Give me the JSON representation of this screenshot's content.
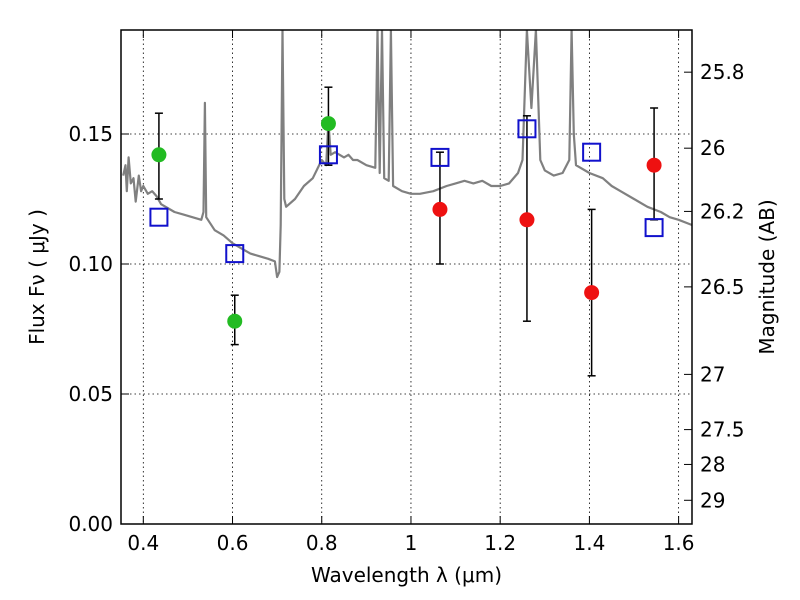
{
  "chart_data": {
    "type": "scatter",
    "xlabel": "Wavelength  λ (μm)",
    "ylabel": "Flux  Fν  ( μJy )",
    "ylabel_right": "Magnitude (AB)",
    "xlim": [
      0.35,
      1.63
    ],
    "ylim": [
      0.0,
      0.19
    ],
    "grid": true,
    "x_ticks": [
      {
        "value": 0.4,
        "label": "0.4"
      },
      {
        "value": 0.6,
        "label": "0.6"
      },
      {
        "value": 0.8,
        "label": "0.8"
      },
      {
        "value": 1.0,
        "label": "1"
      },
      {
        "value": 1.2,
        "label": "1.2"
      },
      {
        "value": 1.4,
        "label": "1.4"
      },
      {
        "value": 1.6,
        "label": "1.6"
      }
    ],
    "y_ticks": [
      {
        "value": 0.0,
        "label": "0.00"
      },
      {
        "value": 0.05,
        "label": "0.05"
      },
      {
        "value": 0.1,
        "label": "0.10"
      },
      {
        "value": 0.15,
        "label": "0.15"
      }
    ],
    "magnitude_ticks": [
      {
        "value": 25.8,
        "label": "25.8"
      },
      {
        "value": 26.0,
        "label": "26"
      },
      {
        "value": 26.2,
        "label": "26.2"
      },
      {
        "value": 26.5,
        "label": "26.5"
      },
      {
        "value": 27.0,
        "label": "27"
      },
      {
        "value": 27.5,
        "label": "27.5"
      },
      {
        "value": 28.0,
        "label": "28"
      },
      {
        "value": 29.0,
        "label": "29"
      }
    ],
    "series": [
      {
        "kind": "model-spectrum",
        "color": "#808080",
        "points": [
          [
            0.355,
            0.134
          ],
          [
            0.36,
            0.138
          ],
          [
            0.363,
            0.128
          ],
          [
            0.367,
            0.141
          ],
          [
            0.372,
            0.131
          ],
          [
            0.378,
            0.133
          ],
          [
            0.383,
            0.124
          ],
          [
            0.39,
            0.134
          ],
          [
            0.395,
            0.128
          ],
          [
            0.4,
            0.13
          ],
          [
            0.41,
            0.127
          ],
          [
            0.42,
            0.128
          ],
          [
            0.43,
            0.126
          ],
          [
            0.44,
            0.123
          ],
          [
            0.45,
            0.122
          ],
          [
            0.47,
            0.12
          ],
          [
            0.49,
            0.119
          ],
          [
            0.51,
            0.118
          ],
          [
            0.53,
            0.117
          ],
          [
            0.535,
            0.12
          ],
          [
            0.538,
            0.162
          ],
          [
            0.541,
            0.118
          ],
          [
            0.56,
            0.113
          ],
          [
            0.58,
            0.111
          ],
          [
            0.6,
            0.108
          ],
          [
            0.62,
            0.106
          ],
          [
            0.64,
            0.104
          ],
          [
            0.66,
            0.103
          ],
          [
            0.68,
            0.102
          ],
          [
            0.695,
            0.101
          ],
          [
            0.7,
            0.095
          ],
          [
            0.705,
            0.097
          ],
          [
            0.708,
            0.115
          ],
          [
            0.712,
            0.19
          ],
          [
            0.716,
            0.125
          ],
          [
            0.72,
            0.122
          ],
          [
            0.74,
            0.125
          ],
          [
            0.76,
            0.13
          ],
          [
            0.78,
            0.133
          ],
          [
            0.8,
            0.14
          ],
          [
            0.81,
            0.138
          ],
          [
            0.815,
            0.155
          ],
          [
            0.82,
            0.142
          ],
          [
            0.83,
            0.143
          ],
          [
            0.84,
            0.142
          ],
          [
            0.85,
            0.141
          ],
          [
            0.86,
            0.142
          ],
          [
            0.87,
            0.14
          ],
          [
            0.88,
            0.14
          ],
          [
            0.9,
            0.138
          ],
          [
            0.92,
            0.137
          ],
          [
            0.925,
            0.19
          ],
          [
            0.93,
            0.135
          ],
          [
            0.935,
            0.19
          ],
          [
            0.94,
            0.133
          ],
          [
            0.95,
            0.132
          ],
          [
            0.955,
            0.19
          ],
          [
            0.96,
            0.13
          ],
          [
            0.98,
            0.128
          ],
          [
            1.0,
            0.127
          ],
          [
            1.02,
            0.127
          ],
          [
            1.05,
            0.128
          ],
          [
            1.08,
            0.13
          ],
          [
            1.1,
            0.131
          ],
          [
            1.12,
            0.132
          ],
          [
            1.14,
            0.131
          ],
          [
            1.16,
            0.132
          ],
          [
            1.18,
            0.13
          ],
          [
            1.2,
            0.13
          ],
          [
            1.22,
            0.131
          ],
          [
            1.24,
            0.135
          ],
          [
            1.25,
            0.14
          ],
          [
            1.26,
            0.19
          ],
          [
            1.27,
            0.16
          ],
          [
            1.28,
            0.19
          ],
          [
            1.29,
            0.14
          ],
          [
            1.3,
            0.136
          ],
          [
            1.32,
            0.134
          ],
          [
            1.34,
            0.135
          ],
          [
            1.355,
            0.14
          ],
          [
            1.36,
            0.19
          ],
          [
            1.365,
            0.15
          ],
          [
            1.37,
            0.138
          ],
          [
            1.4,
            0.135
          ],
          [
            1.43,
            0.133
          ],
          [
            1.45,
            0.13
          ],
          [
            1.47,
            0.128
          ],
          [
            1.5,
            0.125
          ],
          [
            1.53,
            0.122
          ],
          [
            1.56,
            0.12
          ],
          [
            1.58,
            0.118
          ],
          [
            1.6,
            0.117
          ],
          [
            1.63,
            0.115
          ]
        ]
      },
      {
        "kind": "green-circles",
        "color": "#22bb22",
        "points": [
          {
            "x": 0.435,
            "y": 0.142,
            "lo": 0.125,
            "hi": 0.158
          },
          {
            "x": 0.605,
            "y": 0.078,
            "lo": 0.069,
            "hi": 0.088
          },
          {
            "x": 0.815,
            "y": 0.154,
            "lo": 0.138,
            "hi": 0.168
          }
        ]
      },
      {
        "kind": "red-circles",
        "color": "#ee1111",
        "points": [
          {
            "x": 1.065,
            "y": 0.121,
            "lo": 0.1,
            "hi": 0.143
          },
          {
            "x": 1.26,
            "y": 0.117,
            "lo": 0.078,
            "hi": 0.157
          },
          {
            "x": 1.405,
            "y": 0.089,
            "lo": 0.057,
            "hi": 0.121
          },
          {
            "x": 1.545,
            "y": 0.138,
            "lo": 0.117,
            "hi": 0.16
          }
        ]
      },
      {
        "kind": "blue-squares",
        "color": "#1111cc",
        "points": [
          {
            "x": 0.435,
            "y": 0.118
          },
          {
            "x": 0.605,
            "y": 0.104
          },
          {
            "x": 0.815,
            "y": 0.142
          },
          {
            "x": 1.065,
            "y": 0.141
          },
          {
            "x": 1.26,
            "y": 0.152
          },
          {
            "x": 1.405,
            "y": 0.143
          },
          {
            "x": 1.545,
            "y": 0.114
          }
        ]
      }
    ]
  }
}
